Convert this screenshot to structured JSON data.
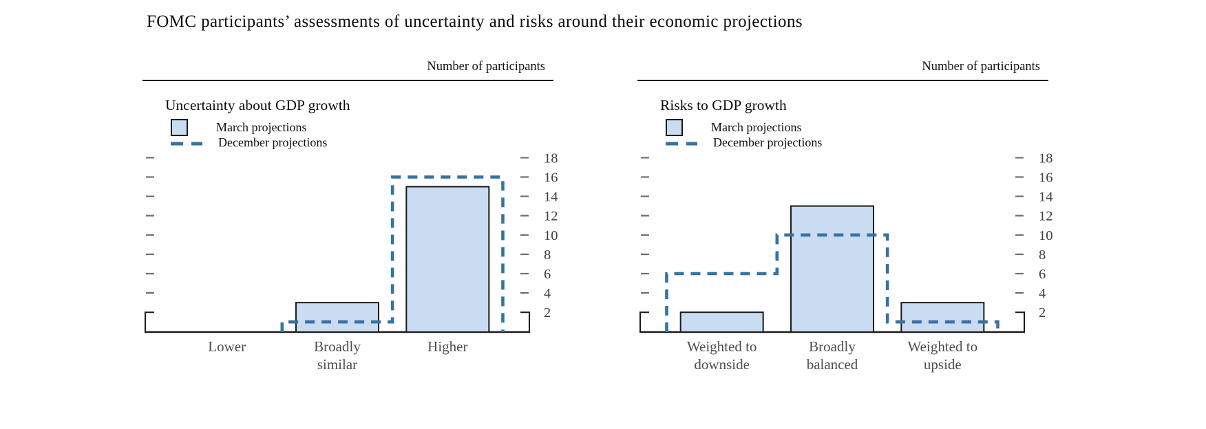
{
  "title": "FOMC participants’ assessments of uncertainty and risks around their economic projections",
  "colors": {
    "bar_fill": "#c9dcf1",
    "bar_stroke": "#1a1a1a",
    "december_line": "#3673a0",
    "axis": "#1a1a1a",
    "tick": "#6e6e6e",
    "tick_label": "#3e3e3e",
    "category_label": "#4d4d4d"
  },
  "chart_data": [
    {
      "type": "bar",
      "title": "Uncertainty about GDP growth",
      "axis_header": "Number of participants",
      "legend": {
        "march": "March projections",
        "december": "December projections"
      },
      "legend_position": "top-left",
      "grid": false,
      "categories": [
        "Lower",
        "Broadly similar",
        "Higher"
      ],
      "category_lines": [
        [
          "Lower"
        ],
        [
          "Broadly",
          "similar"
        ],
        [
          "Higher"
        ]
      ],
      "series": [
        {
          "name": "March projections",
          "style": "bar",
          "values": [
            0,
            3,
            15
          ]
        },
        {
          "name": "December projections",
          "style": "dashed-step",
          "values": [
            0,
            1,
            16
          ]
        }
      ],
      "ylabel": "Number of participants",
      "yticks": [
        2,
        4,
        6,
        8,
        10,
        12,
        14,
        16,
        18
      ],
      "ylim": [
        0,
        20
      ]
    },
    {
      "type": "bar",
      "title": "Risks to GDP growth",
      "axis_header": "Number of participants",
      "legend": {
        "march": "March projections",
        "december": "December projections"
      },
      "legend_position": "top-left",
      "grid": false,
      "categories": [
        "Weighted to downside",
        "Broadly balanced",
        "Weighted to upside"
      ],
      "category_lines": [
        [
          "Weighted to",
          "downside"
        ],
        [
          "Broadly",
          "balanced"
        ],
        [
          "Weighted to",
          "upside"
        ]
      ],
      "series": [
        {
          "name": "March projections",
          "style": "bar",
          "values": [
            2,
            13,
            3
          ]
        },
        {
          "name": "December projections",
          "style": "dashed-step",
          "values": [
            6,
            10,
            1
          ]
        }
      ],
      "ylabel": "Number of participants",
      "yticks": [
        2,
        4,
        6,
        8,
        10,
        12,
        14,
        16,
        18
      ],
      "ylim": [
        0,
        20
      ]
    }
  ]
}
